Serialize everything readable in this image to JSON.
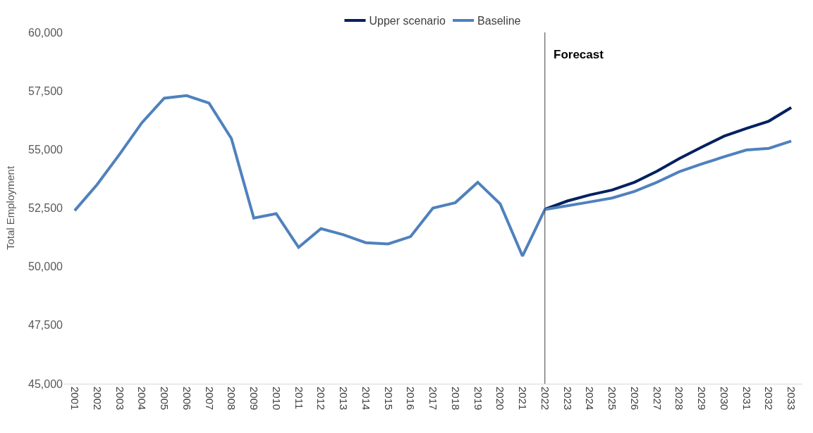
{
  "chart_data": {
    "type": "line",
    "ylabel": "Total Employment",
    "categories": [
      "2001",
      "2002",
      "2003",
      "2004",
      "2005",
      "2006",
      "2007",
      "2008",
      "2009",
      "2010",
      "2011",
      "2012",
      "2013",
      "2014",
      "2015",
      "2016",
      "2017",
      "2018",
      "2019",
      "2020",
      "2021",
      "2022",
      "2023",
      "2024",
      "2025",
      "2026",
      "2027",
      "2028",
      "2029",
      "2030",
      "2031",
      "2032",
      "2033"
    ],
    "series": [
      {
        "name": "Upper scenario",
        "color": "#002060",
        "values": [
          null,
          null,
          null,
          null,
          null,
          null,
          null,
          null,
          null,
          null,
          null,
          null,
          null,
          null,
          null,
          null,
          null,
          null,
          null,
          null,
          null,
          52450,
          52800,
          53060,
          53270,
          53600,
          54070,
          54610,
          55100,
          55570,
          55900,
          56210,
          56790
        ]
      },
      {
        "name": "Baseline",
        "color": "#4f81bd",
        "values": [
          52390,
          53500,
          54790,
          56140,
          57190,
          57300,
          56980,
          55470,
          52070,
          52260,
          50820,
          51620,
          51360,
          51020,
          50970,
          51280,
          52500,
          52730,
          53600,
          52680,
          50450,
          52440,
          52600,
          52760,
          52930,
          53210,
          53600,
          54050,
          54380,
          54690,
          54980,
          55050,
          55360
        ]
      }
    ],
    "ylim": [
      45000,
      60000
    ],
    "yticks": [
      {
        "value": 45000,
        "label": "45,000"
      },
      {
        "value": 47500,
        "label": "47,500"
      },
      {
        "value": 50000,
        "label": "50,000"
      },
      {
        "value": 52500,
        "label": "52,500"
      },
      {
        "value": 55000,
        "label": "55,000"
      },
      {
        "value": 57500,
        "label": "57,500"
      },
      {
        "value": 60000,
        "label": "60,000"
      }
    ],
    "ref_lines": [
      {
        "axis": "x",
        "value": "2022",
        "label": "Forecast",
        "color": "#404040"
      }
    ],
    "legend": "top",
    "marker": "none",
    "line_style": "solid"
  }
}
